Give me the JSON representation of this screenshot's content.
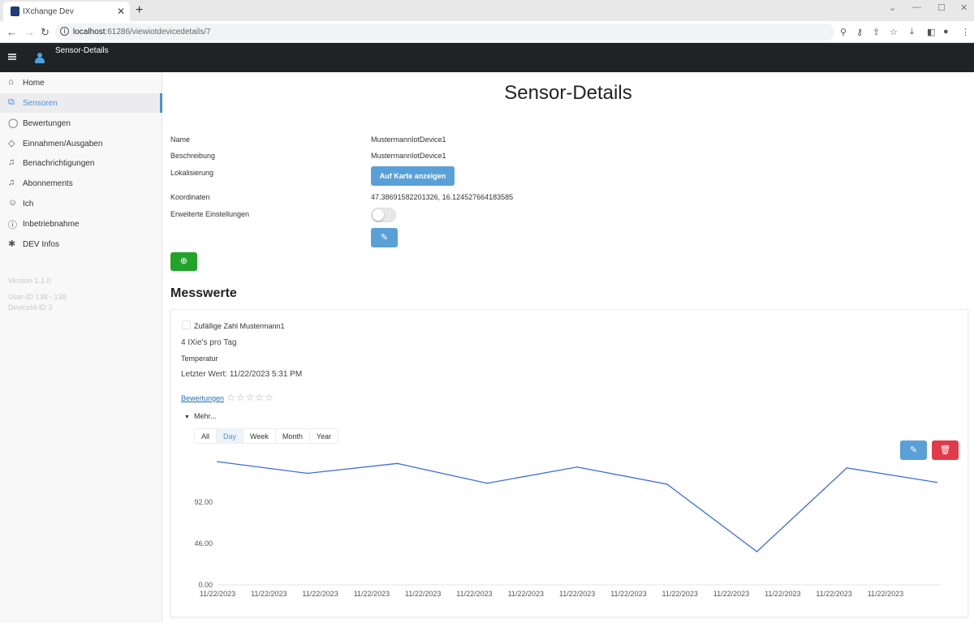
{
  "browser": {
    "tab_title": "IXchange Dev",
    "url_host": "localhost",
    "url_path": ":61286/viewiotdevicedetails/7"
  },
  "appbar": {
    "title": "Sensor-Details"
  },
  "sidebar": {
    "items": [
      {
        "label": "Home",
        "icon": "home-icon"
      },
      {
        "label": "Sensoren",
        "icon": "sensor-icon",
        "active": true
      },
      {
        "label": "Bewertungen",
        "icon": "chat-icon"
      },
      {
        "label": "Einnahmen/Ausgaben",
        "icon": "diamond-icon"
      },
      {
        "label": "Benachrichtigungen",
        "icon": "bell-icon"
      },
      {
        "label": "Abonnements",
        "icon": "bell-icon"
      },
      {
        "label": "Ich",
        "icon": "user-icon"
      },
      {
        "label": "Inbetriebnahme",
        "icon": "info-icon"
      },
      {
        "label": "DEV Infos",
        "icon": "bug-icon"
      }
    ],
    "version": "Version 1.1.0",
    "user_id": "User-ID 138 - 138",
    "device_id": "DeviceId-ID 3"
  },
  "page": {
    "title": "Sensor-Details",
    "fields": {
      "name_label": "Name",
      "name_value": "MustermannIotDevice1",
      "desc_label": "Beschreibung",
      "desc_value": "MustermannIotDevice1",
      "loc_label": "Lokalisierung",
      "map_button": "Auf Karte anzeigen",
      "coord_label": "Koordinaten",
      "coord_value": "47.38691582201326, 16.124527664183585",
      "adv_label": "Erweiterte Einstellungen",
      "adv_enabled": false
    },
    "section_title": "Messwerte"
  },
  "measurement": {
    "name": "Zufällige Zahl Mustermann1",
    "price": "4 IXie's pro Tag",
    "type": "Temperatur",
    "last_value": "Letzter Wert: 11/22/2023 5:31 PM",
    "ratings_link": "Bewertungen",
    "rating": 0,
    "more": "Mehr...",
    "ranges": [
      "All",
      "Day",
      "Week",
      "Month",
      "Year"
    ],
    "selected_range": "Day"
  },
  "chart_data": {
    "type": "line",
    "color": "#3b6fd8",
    "y_ticks": [
      "0.00",
      "46.00",
      "92.00"
    ],
    "ylim": [
      0,
      168
    ],
    "x_tick_labels": [
      "11/22/2023",
      "11/22/2023",
      "11/22/2023",
      "11/22/2023",
      "11/22/2023",
      "11/22/2023",
      "11/22/2023",
      "11/22/2023",
      "11/22/2023",
      "11/22/2023",
      "11/22/2023",
      "11/22/2023",
      "11/22/2023",
      "11/22/2023"
    ],
    "values": [
      137,
      124,
      135,
      113,
      131,
      112,
      37,
      130,
      114
    ]
  }
}
